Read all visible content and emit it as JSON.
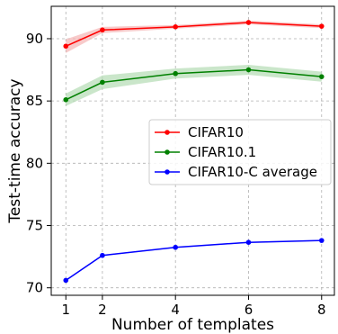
{
  "chart_data": {
    "type": "line",
    "xlabel": "Number of templates",
    "ylabel": "Test-time accuracy",
    "x": [
      1,
      2,
      4,
      6,
      8
    ],
    "xlim": [
      0.6,
      8.35
    ],
    "ylim": [
      69.4,
      92.6
    ],
    "xticks": [
      1,
      2,
      4,
      6,
      8
    ],
    "yticks": [
      70,
      75,
      80,
      85,
      90
    ],
    "grid": true,
    "legend_placement": "center-right",
    "series": [
      {
        "name": "CIFAR10",
        "color": "#ff0000",
        "band_color": "#f5b3b3",
        "values": [
          89.4,
          90.7,
          90.95,
          91.3,
          91.0
        ],
        "band_low": [
          88.85,
          90.45,
          90.8,
          91.15,
          90.85
        ],
        "band_high": [
          89.95,
          90.95,
          91.1,
          91.45,
          91.15
        ]
      },
      {
        "name": "CIFAR10.1",
        "color": "#008000",
        "band_color": "#b3dcb3",
        "values": [
          85.1,
          86.5,
          87.2,
          87.5,
          86.95
        ],
        "band_low": [
          84.6,
          85.95,
          86.8,
          87.1,
          86.55
        ],
        "band_high": [
          85.6,
          87.05,
          87.6,
          87.9,
          87.35
        ]
      },
      {
        "name": "CIFAR10-C average",
        "color": "#0000ff",
        "band_color": "#b3b3ff",
        "values": [
          70.6,
          72.6,
          73.25,
          73.65,
          73.8
        ],
        "band_low": [
          70.55,
          72.55,
          73.2,
          73.6,
          73.75
        ],
        "band_high": [
          70.65,
          72.65,
          73.3,
          73.7,
          73.85
        ]
      }
    ]
  }
}
